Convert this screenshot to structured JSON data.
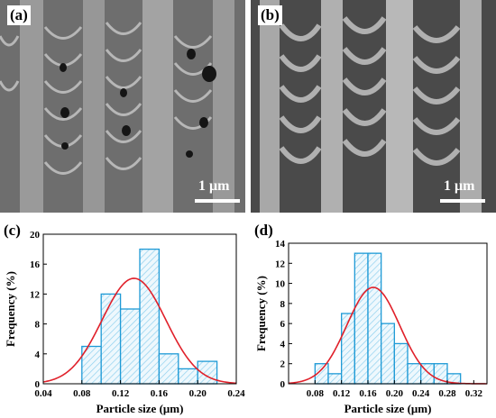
{
  "panels": {
    "a": {
      "label": "(a)",
      "scale_bar": "1 μm"
    },
    "b": {
      "label": "(b)",
      "scale_bar": "1 μm"
    },
    "c": {
      "label": "(c)"
    },
    "d": {
      "label": "(d)"
    }
  },
  "chart_data": [
    {
      "panel": "(c)",
      "type": "bar",
      "subtype": "histogram with normal fit curve",
      "xlabel": "Particle size (μm)",
      "ylabel": "Frequency (%)",
      "xlim": [
        0.04,
        0.24
      ],
      "ylim": [
        0,
        20
      ],
      "xticks": [
        0.04,
        0.08,
        0.12,
        0.16,
        0.2,
        0.24
      ],
      "xtick_labels": [
        "0.04",
        "0.08",
        "0.12",
        "0.16",
        "0.20",
        "0.24"
      ],
      "yticks": [
        0,
        4,
        8,
        12,
        16,
        20
      ],
      "ytick_labels": [
        "0",
        "4",
        "8",
        "12",
        "16",
        "20"
      ],
      "bin_width": 0.02,
      "bins": [
        {
          "start": 0.08,
          "value": 5
        },
        {
          "start": 0.1,
          "value": 12
        },
        {
          "start": 0.12,
          "value": 10
        },
        {
          "start": 0.14,
          "value": 18
        },
        {
          "start": 0.16,
          "value": 4
        },
        {
          "start": 0.18,
          "value": 2
        },
        {
          "start": 0.2,
          "value": 3
        }
      ],
      "fit": {
        "type": "normal",
        "mean": 0.134,
        "sd": 0.033,
        "peak": 14.1,
        "color": "#e0202a"
      },
      "bar_edge_color": "#1e9ad6",
      "bar_fill": "hatched light blue"
    },
    {
      "panel": "(d)",
      "type": "bar",
      "subtype": "histogram with normal fit curve",
      "xlabel": "Particle size (μm)",
      "ylabel": "Frequency (%)",
      "xlim": [
        0.04,
        0.34
      ],
      "ylim": [
        0,
        14
      ],
      "xticks": [
        0.08,
        0.12,
        0.16,
        0.2,
        0.24,
        0.28,
        0.32
      ],
      "xtick_labels": [
        "0.08",
        "0.12",
        "0.16",
        "0.20",
        "0.24",
        "0.28",
        "0.32"
      ],
      "yticks": [
        0,
        2,
        4,
        6,
        8,
        10,
        12,
        14
      ],
      "ytick_labels": [
        "0",
        "2",
        "4",
        "6",
        "8",
        "10",
        "12",
        "14"
      ],
      "bin_width": 0.02,
      "bins": [
        {
          "start": 0.08,
          "value": 2
        },
        {
          "start": 0.1,
          "value": 1
        },
        {
          "start": 0.12,
          "value": 7
        },
        {
          "start": 0.14,
          "value": 13
        },
        {
          "start": 0.16,
          "value": 13
        },
        {
          "start": 0.18,
          "value": 6
        },
        {
          "start": 0.2,
          "value": 4
        },
        {
          "start": 0.22,
          "value": 2
        },
        {
          "start": 0.24,
          "value": 2
        },
        {
          "start": 0.26,
          "value": 2
        },
        {
          "start": 0.28,
          "value": 1
        }
      ],
      "fit": {
        "type": "normal",
        "mean": 0.168,
        "sd": 0.04,
        "peak": 9.6,
        "color": "#e0202a"
      },
      "bar_edge_color": "#1e9ad6",
      "bar_fill": "hatched light blue"
    }
  ]
}
